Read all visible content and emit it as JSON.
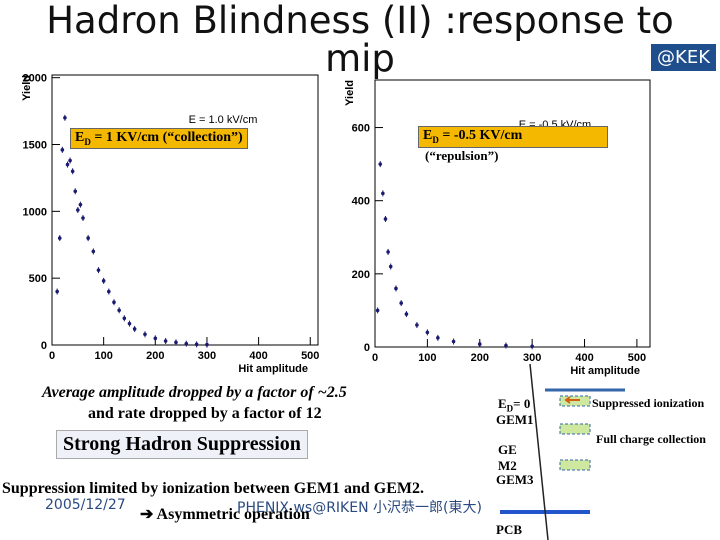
{
  "slide": {
    "title": "Hadron Blindness (II) :response to mip",
    "badge": "@KEK",
    "box_left": {
      "e": "E",
      "sub": "D",
      "text": " = 1 KV/cm (“collection”)"
    },
    "box_right": {
      "e": "E",
      "sub": "D",
      "text": " = -0.5 KV/cm",
      "note": "(“repulsion”)"
    },
    "line1": "Average amplitude dropped by a factor of ~2.5",
    "line2": "and rate dropped by a factor of  12",
    "headline": "Strong Hadron Suppression",
    "line3": "Suppression limited by ionization between GEM1 and GEM2.",
    "line4": "Asymmetric operation",
    "date": "2005/12/27",
    "footer": "PHENIX ws@RIKEN 小沢恭一郎(東大)",
    "diagram": {
      "ed": "E",
      "ed_sub": "D",
      "ed_val": "= 0",
      "gem1": "GEM1",
      "gem2a": "GE",
      "gem2b": "M2",
      "gem3": "GEM3",
      "pcb": "PCB",
      "suppressed": "Suppressed ionization",
      "full": "Full charge collection"
    }
  },
  "chart_data": [
    {
      "type": "scatter",
      "y_label": "Yield",
      "x_label": "Hit amplitude",
      "annotation": "E  = 1.0 kV/cm",
      "color": "#1a1a6e",
      "x": [
        10,
        15,
        20,
        25,
        30,
        35,
        40,
        45,
        50,
        55,
        60,
        70,
        80,
        90,
        100,
        110,
        120,
        130,
        140,
        150,
        160,
        180,
        200,
        220,
        240,
        260,
        280,
        300
      ],
      "values": [
        400,
        800,
        1460,
        1700,
        1350,
        1380,
        1300,
        1150,
        1010,
        1050,
        950,
        800,
        700,
        560,
        480,
        400,
        320,
        260,
        200,
        160,
        120,
        80,
        50,
        30,
        20,
        10,
        5,
        3
      ],
      "xlim": [
        0,
        515
      ],
      "ylim": [
        0,
        2020
      ],
      "xticks": [
        0,
        100,
        200,
        300,
        400,
        500
      ],
      "yticks": [
        0,
        500,
        1000,
        1500,
        2000
      ]
    },
    {
      "type": "scatter",
      "y_label": "Yield",
      "x_label": "Hit amplitude",
      "annotation": "E  = -0.5 kV/cm",
      "color": "#1a1a6e",
      "x": [
        5,
        10,
        15,
        20,
        25,
        30,
        40,
        50,
        60,
        80,
        100,
        120,
        150,
        200,
        250,
        300
      ],
      "values": [
        100,
        500,
        420,
        350,
        260,
        220,
        160,
        120,
        90,
        60,
        40,
        25,
        15,
        8,
        4,
        2
      ],
      "xlim": [
        0,
        525
      ],
      "ylim": [
        0,
        730
      ],
      "xticks": [
        0,
        100,
        200,
        300,
        400,
        500
      ],
      "yticks": [
        0,
        200,
        400,
        600
      ]
    }
  ]
}
